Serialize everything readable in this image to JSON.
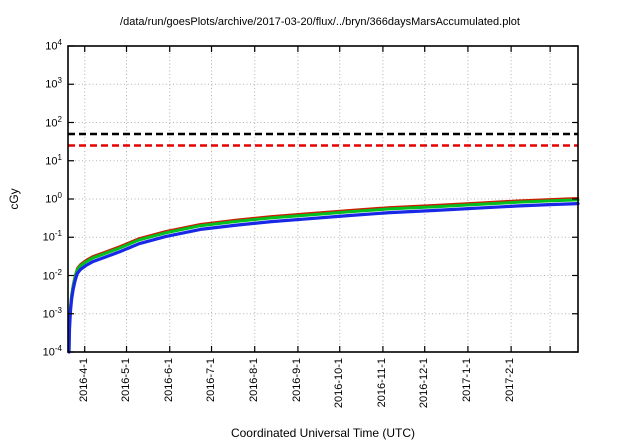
{
  "title": "/data/run/goesPlots/archive/2017-03-20/flux/../bryn/366daysMarsAccumulated.plot",
  "x_axis_label": "Coordinated Universal Time (UTC)",
  "y_axis_label": "cGy",
  "colors": {
    "background": "#ffffff",
    "frame": "#000000",
    "grid": "#b3b3b3",
    "threshold_black": "#000000",
    "threshold_red": "#e60000",
    "series_red": "#cc1d00",
    "series_green": "#00bf20",
    "series_blue": "#1828e6"
  },
  "chart_data": {
    "type": "line",
    "title": "/data/run/goesPlots/archive/2017-03-20/flux/../bryn/366daysMarsAccumulated.plot",
    "xlabel": "Coordinated Universal Time (UTC)",
    "ylabel": "cGy",
    "y_scale": "log",
    "ylim": [
      0.0001,
      10000
    ],
    "y_tick_exponents": [
      4,
      3,
      2,
      1,
      0,
      -1,
      -2,
      -3,
      -4
    ],
    "y_tick_base": "10",
    "x_span_days": 366,
    "x_start": "2016-3-20",
    "x_end": "2017-3-20",
    "grid": true,
    "legend": "none",
    "x_ticks": [
      {
        "day": 12,
        "label": "2016-4-1"
      },
      {
        "day": 42,
        "label": "2016-5-1"
      },
      {
        "day": 73,
        "label": "2016-6-1"
      },
      {
        "day": 103,
        "label": "2016-7-1"
      },
      {
        "day": 134,
        "label": "2016-8-1"
      },
      {
        "day": 165,
        "label": "2016-9-1"
      },
      {
        "day": 195,
        "label": "2016-10-1"
      },
      {
        "day": 226,
        "label": "2016-11-1"
      },
      {
        "day": 256,
        "label": "2016-12-1"
      },
      {
        "day": 287,
        "label": "2017-1-1"
      },
      {
        "day": 318,
        "label": "2017-2-1"
      },
      {
        "day": 346,
        "label": ""
      }
    ],
    "thresholds": [
      {
        "name": "dose-limit-black",
        "value": 50,
        "color": "#000000",
        "style": "dashed",
        "width": 2.5
      },
      {
        "name": "dose-limit-red",
        "value": 25,
        "color": "#e60000",
        "style": "dashed",
        "width": 2.5
      }
    ],
    "series": [
      {
        "name": "accumulated-dose-red",
        "color": "#cc1d00",
        "width": 2.4,
        "points": [
          [
            0.7,
            0.00011
          ],
          [
            1.1,
            0.00055
          ],
          [
            1.8,
            0.00165
          ],
          [
            2.6,
            0.0033
          ],
          [
            3.7,
            0.006
          ],
          [
            5,
            0.0099
          ],
          [
            6.6,
            0.0154
          ],
          [
            9,
            0.0198
          ],
          [
            13,
            0.0253
          ],
          [
            18,
            0.0319
          ],
          [
            26,
            0.0407
          ],
          [
            37,
            0.0572
          ],
          [
            51,
            0.0935
          ],
          [
            70,
            0.143
          ],
          [
            95,
            0.22
          ],
          [
            121,
            0.286
          ],
          [
            146,
            0.352
          ],
          [
            172,
            0.418
          ],
          [
            201,
            0.506
          ],
          [
            231,
            0.605
          ],
          [
            264,
            0.693
          ],
          [
            293,
            0.792
          ],
          [
            322,
            0.902
          ],
          [
            348,
            0.99
          ],
          [
            366,
            1.05
          ]
        ]
      },
      {
        "name": "accumulated-dose-green",
        "color": "#00bf20",
        "width": 3,
        "points": [
          [
            0.7,
            0.0001
          ],
          [
            1.1,
            0.0005
          ],
          [
            1.8,
            0.0015
          ],
          [
            2.6,
            0.003
          ],
          [
            3.7,
            0.0055
          ],
          [
            5,
            0.009
          ],
          [
            6.6,
            0.014
          ],
          [
            9,
            0.018
          ],
          [
            13,
            0.023
          ],
          [
            18,
            0.029
          ],
          [
            26,
            0.037
          ],
          [
            37,
            0.052
          ],
          [
            51,
            0.085
          ],
          [
            70,
            0.13
          ],
          [
            95,
            0.2
          ],
          [
            121,
            0.26
          ],
          [
            146,
            0.32
          ],
          [
            172,
            0.38
          ],
          [
            201,
            0.46
          ],
          [
            231,
            0.55
          ],
          [
            264,
            0.63
          ],
          [
            293,
            0.72
          ],
          [
            322,
            0.82
          ],
          [
            348,
            0.9
          ],
          [
            366,
            0.95
          ]
        ]
      },
      {
        "name": "accumulated-dose-blue",
        "color": "#1828e6",
        "width": 3.2,
        "points": [
          [
            0.7,
            0.0001
          ],
          [
            1.1,
            0.0004
          ],
          [
            1.8,
            0.0012
          ],
          [
            2.6,
            0.0024
          ],
          [
            3.7,
            0.0044
          ],
          [
            5,
            0.0072
          ],
          [
            6.6,
            0.0112
          ],
          [
            9,
            0.0144
          ],
          [
            13,
            0.0184
          ],
          [
            18,
            0.0232
          ],
          [
            26,
            0.0296
          ],
          [
            37,
            0.0416
          ],
          [
            51,
            0.068
          ],
          [
            70,
            0.104
          ],
          [
            95,
            0.16
          ],
          [
            121,
            0.208
          ],
          [
            146,
            0.256
          ],
          [
            172,
            0.304
          ],
          [
            201,
            0.368
          ],
          [
            231,
            0.44
          ],
          [
            264,
            0.504
          ],
          [
            293,
            0.576
          ],
          [
            322,
            0.656
          ],
          [
            348,
            0.72
          ],
          [
            366,
            0.76
          ]
        ]
      }
    ]
  }
}
